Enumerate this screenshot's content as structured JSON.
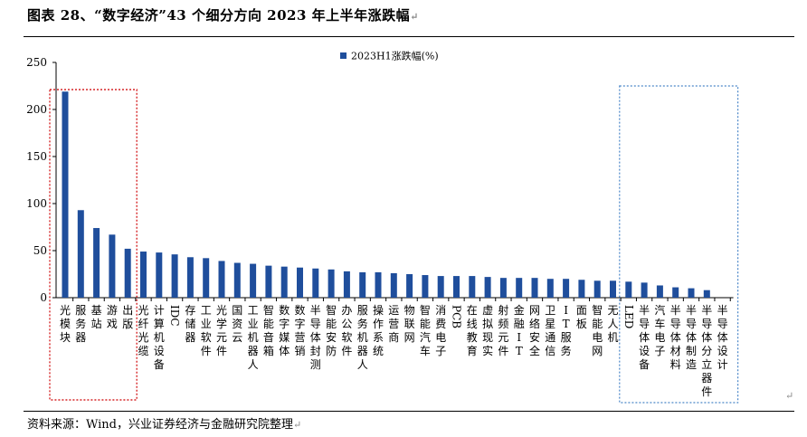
{
  "figure": {
    "title": "图表 28、“数字经济”43 个细分方向 2023 年上半年涨跌幅",
    "source": "资料来源：Wind，兴业证券经济与金融研究院整理",
    "return_mark": "↵"
  },
  "chart_data": {
    "type": "bar",
    "title": "",
    "xlabel": "",
    "ylabel": "",
    "ylim": [
      0,
      250
    ],
    "yticks": [
      0,
      50,
      100,
      150,
      200,
      250
    ],
    "grid": false,
    "legend_position": "top-center",
    "bar_color": "#1f4e9c",
    "highlight_box_color_left": "#d62728",
    "highlight_box_color_right": "#4a86c8",
    "highlight_left": [
      "光模块",
      "服务器",
      "基站",
      "游戏",
      "出版"
    ],
    "highlight_right": [
      "LED",
      "半导体设备",
      "汽车电子",
      "半导体材料",
      "半导体制造",
      "半导体分立器件",
      "半导体设计"
    ],
    "categories": [
      "光模块",
      "服务器",
      "基站",
      "游戏",
      "出版",
      "光纤光缆",
      "计算机设备",
      "IDC",
      "存储器",
      "工业软件",
      "光学元件",
      "国资云",
      "工业机器人",
      "智能音箱",
      "数字媒体",
      "数字营销",
      "半导体封测",
      "智能安防",
      "办公软件",
      "服务机器人",
      "操作系统",
      "运营商",
      "物联网",
      "智能汽车",
      "消费电子",
      "PCB",
      "在线教育",
      "虚拟现实",
      "射频元件",
      "金融IT",
      "网络安全",
      "卫星通信",
      "IT服务",
      "面板",
      "智能电网",
      "无人机",
      "LED",
      "半导体设备",
      "汽车电子",
      "半导体材料",
      "半导体制造",
      "半导体分立器件",
      "半导体设计"
    ],
    "series": [
      {
        "name": "2023H1涨跌幅(%)",
        "values": [
          219,
          93,
          74,
          67,
          52,
          49,
          48,
          46,
          43,
          42,
          39,
          37,
          36,
          34,
          33,
          32,
          31,
          30,
          28,
          27,
          27,
          26,
          25,
          24,
          23,
          23,
          23,
          22,
          21,
          21,
          21,
          20,
          20,
          19,
          18,
          18,
          17,
          16,
          13,
          11,
          10,
          8,
          0
        ]
      }
    ]
  }
}
